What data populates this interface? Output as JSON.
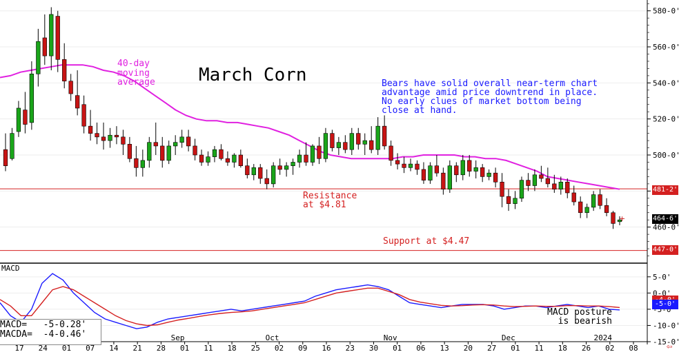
{
  "title": "March Corn",
  "ma_label": "40-day\nmoving\naverage",
  "commentary": "Bears have solid overall near-term chart\nadvantage amid price downtrend in place.\nNo early clues of market bottom being\nclose at hand.",
  "resistance_label": "Resistance\nat $4.81",
  "support_label": "Support at $4.47",
  "macd_title": "MACD",
  "macd_readout": "MACD=   -5-0.28'\nMACDA=  -4-0.46'",
  "macd_posture": "MACD posture\nis bearish",
  "price_tags": {
    "resistance": "481-2'",
    "last": "464-6'",
    "support": "447-0'",
    "macda": "-4-0'",
    "macd": "-5-0'"
  },
  "nav_arrow": "⇦",
  "colors": {
    "up": "#1aa51a",
    "down": "#c81414",
    "ma": "#e020e0",
    "macd": "#1a1aff",
    "macda": "#d42020",
    "line": "#d42020"
  },
  "chart_data": [
    {
      "type": "candlestick",
      "title": "March Corn",
      "ylim": [
        440,
        586
      ],
      "yticks": [
        "580-0'",
        "560-0'",
        "540-0'",
        "520-0'",
        "500-0'",
        "480-0'",
        "460-0'"
      ],
      "ytick_values": [
        580,
        560,
        540,
        520,
        500,
        480,
        460
      ],
      "x_day_labels": [
        "17",
        "24",
        "01",
        "07",
        "14",
        "21",
        "28",
        "01",
        "11",
        "18",
        "25",
        "02",
        "09",
        "16",
        "23",
        "30",
        "01",
        "06",
        "13",
        "20",
        "27",
        "01",
        "11",
        "18",
        "26",
        "02",
        "08"
      ],
      "x_month_labels": [
        "Sep",
        "Oct",
        "Nov",
        "Dec",
        "2024"
      ],
      "ohlc": [
        [
          503,
          512,
          491,
          494
        ],
        [
          498,
          515,
          497,
          512
        ],
        [
          513,
          530,
          510,
          526
        ],
        [
          525,
          535,
          512,
          517
        ],
        [
          518,
          552,
          514,
          545
        ],
        [
          545,
          570,
          538,
          563
        ],
        [
          565,
          578,
          550,
          555
        ],
        [
          555,
          582,
          547,
          578
        ],
        [
          577,
          580,
          546,
          553
        ],
        [
          553,
          562,
          537,
          541
        ],
        [
          541,
          545,
          530,
          534
        ],
        [
          533,
          547,
          522,
          526
        ],
        [
          528,
          533,
          512,
          516
        ],
        [
          516,
          525,
          508,
          512
        ],
        [
          512,
          518,
          506,
          510
        ],
        [
          510,
          518,
          503,
          508
        ],
        [
          508,
          515,
          504,
          511
        ],
        [
          511,
          516,
          506,
          510
        ],
        [
          510,
          514,
          500,
          506
        ],
        [
          506,
          510,
          496,
          498
        ],
        [
          498,
          505,
          488,
          493
        ],
        [
          493,
          503,
          488,
          497
        ],
        [
          497,
          510,
          493,
          507
        ],
        [
          507,
          518,
          500,
          505
        ],
        [
          505,
          510,
          493,
          497
        ],
        [
          497,
          508,
          495,
          505
        ],
        [
          505,
          511,
          500,
          507
        ],
        [
          507,
          514,
          504,
          510
        ],
        [
          510,
          514,
          502,
          505
        ],
        [
          505,
          509,
          497,
          500
        ],
        [
          500,
          503,
          494,
          496
        ],
        [
          496,
          502,
          494,
          499
        ],
        [
          499,
          505,
          496,
          503
        ],
        [
          503,
          506,
          497,
          498
        ],
        [
          498,
          502,
          494,
          496
        ],
        [
          496,
          501,
          493,
          500
        ],
        [
          500,
          503,
          493,
          494
        ],
        [
          494,
          498,
          487,
          489
        ],
        [
          489,
          495,
          486,
          493
        ],
        [
          493,
          495,
          484,
          487
        ],
        [
          487,
          492,
          481,
          484
        ],
        [
          484,
          496,
          482,
          494
        ],
        [
          494,
          498,
          489,
          492
        ],
        [
          492,
          496,
          488,
          494
        ],
        [
          494,
          498,
          489,
          496
        ],
        [
          496,
          503,
          493,
          500
        ],
        [
          500,
          507,
          494,
          496
        ],
        [
          496,
          506,
          494,
          505
        ],
        [
          505,
          510,
          495,
          498
        ],
        [
          498,
          515,
          496,
          512
        ],
        [
          512,
          514,
          502,
          504
        ],
        [
          504,
          510,
          500,
          507
        ],
        [
          507,
          511,
          501,
          503
        ],
        [
          503,
          515,
          500,
          512
        ],
        [
          512,
          515,
          503,
          506
        ],
        [
          506,
          512,
          500,
          508
        ],
        [
          508,
          516,
          501,
          503
        ],
        [
          503,
          521,
          500,
          516
        ],
        [
          516,
          522,
          503,
          505
        ],
        [
          505,
          508,
          494,
          497
        ],
        [
          497,
          501,
          492,
          495
        ],
        [
          495,
          499,
          490,
          493
        ],
        [
          493,
          498,
          491,
          495
        ],
        [
          495,
          497,
          489,
          492
        ],
        [
          492,
          496,
          484,
          486
        ],
        [
          486,
          496,
          484,
          494
        ],
        [
          494,
          500,
          488,
          490
        ],
        [
          490,
          493,
          478,
          481
        ],
        [
          481,
          497,
          479,
          494
        ],
        [
          494,
          496,
          485,
          489
        ],
        [
          489,
          500,
          486,
          497
        ],
        [
          497,
          500,
          488,
          491
        ],
        [
          491,
          497,
          487,
          493
        ],
        [
          493,
          495,
          485,
          488
        ],
        [
          488,
          492,
          486,
          490
        ],
        [
          490,
          493,
          482,
          485
        ],
        [
          485,
          490,
          471,
          477
        ],
        [
          477,
          481,
          469,
          473
        ],
        [
          473,
          480,
          470,
          476
        ],
        [
          476,
          488,
          474,
          486
        ],
        [
          486,
          490,
          480,
          483
        ],
        [
          483,
          492,
          480,
          489
        ],
        [
          489,
          494,
          485,
          487
        ],
        [
          487,
          493,
          482,
          484
        ],
        [
          484,
          489,
          479,
          481
        ],
        [
          481,
          488,
          478,
          485
        ],
        [
          485,
          487,
          476,
          479
        ],
        [
          479,
          483,
          472,
          474
        ],
        [
          474,
          477,
          465,
          468
        ],
        [
          468,
          473,
          465,
          471
        ],
        [
          471,
          480,
          469,
          478
        ],
        [
          478,
          481,
          470,
          472
        ],
        [
          472,
          476,
          466,
          468
        ],
        [
          468,
          469,
          459,
          462
        ],
        [
          463,
          466,
          461,
          464
        ]
      ],
      "ma40": [
        543,
        544,
        546,
        547,
        548,
        549,
        550,
        550,
        550,
        549,
        547,
        546,
        544,
        541,
        537,
        533,
        529,
        525,
        522,
        520,
        519,
        519,
        518,
        518,
        517,
        516,
        515,
        513,
        511,
        508,
        505,
        502,
        500,
        499,
        498,
        498,
        498,
        498,
        498,
        499,
        499,
        500,
        500,
        500,
        500,
        499,
        499,
        498,
        498,
        497,
        495,
        493,
        491,
        488,
        487,
        486,
        485,
        484,
        483,
        482,
        481
      ],
      "resistance": 481.25,
      "support": 447,
      "last": 464.75
    },
    {
      "type": "line",
      "title": "MACD",
      "ylim": [
        -15,
        9
      ],
      "yticks": [
        "5-0'",
        "0-0'",
        "-5-0'",
        "-10-0'",
        "-15-0'"
      ],
      "ytick_values": [
        5,
        0,
        -5,
        -10,
        -15
      ],
      "series": [
        {
          "name": "MACD",
          "values": [
            -3,
            -7,
            -9,
            -5,
            3,
            6,
            4,
            0,
            -3,
            -6,
            -8,
            -9,
            -10,
            -11,
            -10.5,
            -9,
            -8,
            -7.5,
            -7,
            -6.5,
            -6,
            -5.5,
            -5,
            -5.5,
            -5,
            -4.5,
            -4,
            -3.5,
            -3,
            -2.5,
            -1,
            0,
            1,
            1.5,
            2,
            2.5,
            2,
            1,
            -1,
            -3,
            -3.5,
            -4,
            -4.5,
            -4,
            -3.5,
            -3.5,
            -3.5,
            -4,
            -5,
            -4.5,
            -4,
            -4,
            -4.5,
            -4,
            -3.5,
            -4,
            -4.5,
            -4,
            -5,
            -5.2
          ]
        },
        {
          "name": "MACDA",
          "values": [
            -2,
            -4,
            -7,
            -7,
            -3,
            1,
            2,
            1,
            -1,
            -3,
            -5,
            -7,
            -8.5,
            -9.5,
            -10,
            -9.8,
            -9,
            -8.3,
            -7.8,
            -7.2,
            -6.7,
            -6.3,
            -6,
            -5.8,
            -5.5,
            -5,
            -4.5,
            -4,
            -3.5,
            -3,
            -2,
            -1,
            0,
            0.5,
            1,
            1.5,
            1.5,
            0.5,
            -0.5,
            -2,
            -2.8,
            -3.3,
            -3.8,
            -4,
            -3.9,
            -3.7,
            -3.6,
            -3.7,
            -4,
            -4.2,
            -4.1,
            -4,
            -4.1,
            -4.1,
            -3.9,
            -3.9,
            -4,
            -4,
            -4.2,
            -4.46
          ]
        }
      ]
    }
  ]
}
